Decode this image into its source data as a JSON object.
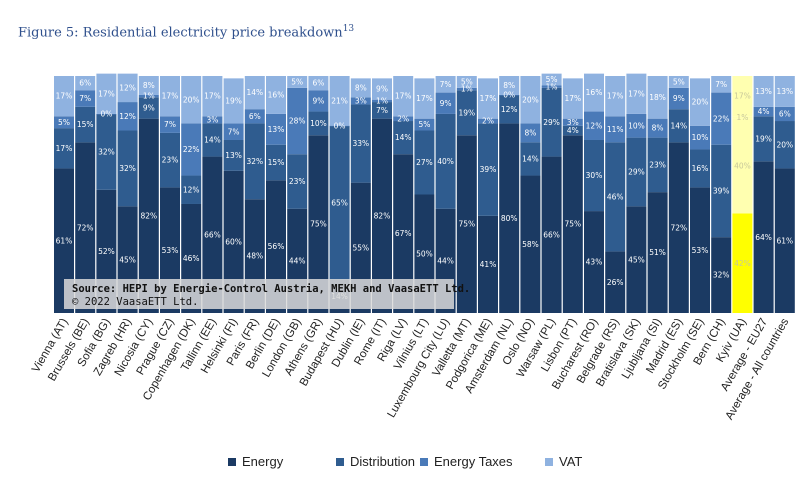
{
  "figure": {
    "title": "Figure 5: Residential electricity price breakdown",
    "title_sup": "13"
  },
  "source": {
    "line1": "Source: HEPI by Energie-Control Austria, MEKH and VaasaETT Ltd.",
    "line2": "© 2022 VaasaETT Ltd."
  },
  "colors": {
    "Energy": "#1b3a63",
    "Distribution": "#2f5c8f",
    "Energy Taxes": "#4a7ab8",
    "VAT": "#8fb2e0",
    "highlight": "#ffff00",
    "highlight_light": "#ffffb0"
  },
  "chart_data": {
    "type": "bar",
    "stacked": true,
    "percent_stacked": true,
    "ylim": [
      0,
      100
    ],
    "legend_position": "bottom",
    "highlight_category": "Kyiv (UA)",
    "categories": [
      "Vienna (AT)",
      "Brussels (BE)",
      "Sofia (BG)",
      "Zagreb (HR)",
      "Nicosia (CY)",
      "Prague (CZ)",
      "Copenhagen (DK)",
      "Tallinn (EE)",
      "Helsinki (FI)",
      "Paris (FR)",
      "Berlin (DE)",
      "London (GB)",
      "Athens (GR)",
      "Budapest (HU)",
      "Dublin (IE)",
      "Rome (IT)",
      "Riga (LV)",
      "Vilnius (LT)",
      "Luxembourg City (LU)",
      "Valletta (MT)",
      "Podgorica (ME)",
      "Amsterdam (NL)",
      "Oslo (NO)",
      "Warsaw (PL)",
      "Lisbon (PT)",
      "Bucharest (RO)",
      "Belgrade (RS)",
      "Bratislava (SK)",
      "Ljubljana (SI)",
      "Madrid (ES)",
      "Stockholm (SE)",
      "Bern (CH)",
      "Kyiv (UA)",
      "Average - EU27",
      "Average - All countries"
    ],
    "series": [
      {
        "name": "Energy",
        "values": [
          61,
          72,
          52,
          45,
          82,
          53,
          46,
          66,
          60,
          48,
          56,
          44,
          75,
          14,
          55,
          82,
          67,
          50,
          44,
          75,
          41,
          80,
          58,
          66,
          75,
          43,
          26,
          45,
          51,
          72,
          53,
          32,
          42,
          64,
          61
        ]
      },
      {
        "name": "Distribution",
        "values": [
          17,
          15,
          32,
          32,
          9,
          23,
          12,
          14,
          13,
          32,
          15,
          23,
          10,
          65,
          33,
          7,
          14,
          27,
          40,
          19,
          39,
          12,
          14,
          29,
          4,
          30,
          46,
          29,
          23,
          14,
          16,
          39,
          40,
          19,
          20
        ]
      },
      {
        "name": "Energy Taxes",
        "values": [
          5,
          7,
          0,
          12,
          1,
          7,
          22,
          3,
          7,
          6,
          13,
          28,
          9,
          0,
          3,
          1,
          2,
          5,
          9,
          1,
          2,
          0,
          8,
          1,
          3,
          12,
          11,
          10,
          8,
          9,
          10,
          22,
          1,
          4,
          6
        ]
      },
      {
        "name": "VAT",
        "values": [
          17,
          6,
          17,
          12,
          8,
          17,
          20,
          17,
          19,
          14,
          16,
          5,
          6,
          21,
          8,
          9,
          17,
          17,
          7,
          5,
          17,
          8,
          20,
          5,
          17,
          16,
          17,
          17,
          18,
          5,
          20,
          7,
          17,
          13,
          13
        ]
      }
    ]
  }
}
